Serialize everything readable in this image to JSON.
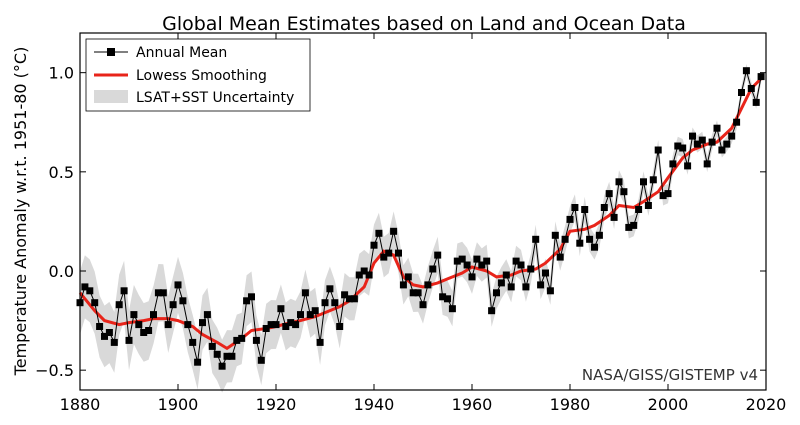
{
  "chart_data": {
    "type": "line",
    "title": "Global Mean Estimates based on Land and Ocean Data",
    "xlabel": "",
    "ylabel": "Temperature Anomaly w.r.t. 1951-80 (°C)",
    "xlim": [
      1880,
      2020
    ],
    "ylim": [
      -0.6,
      1.2
    ],
    "xticks": [
      1880,
      1900,
      1920,
      1940,
      1960,
      1980,
      2000,
      2020
    ],
    "yticks": [
      -0.5,
      0.0,
      0.5,
      1.0
    ],
    "ytick_labels": [
      "−0.5",
      "0.0",
      "0.5",
      "1.0"
    ],
    "grid": false,
    "legend_position": "top-left",
    "credit": "NASA/GISS/GISTEMP v4",
    "colors": {
      "annual": "#000000",
      "lowess": "#e8241a",
      "uncertainty": "#d9d9d9"
    },
    "series": [
      {
        "name": "Annual Mean",
        "x": [
          1880,
          1881,
          1882,
          1883,
          1884,
          1885,
          1886,
          1887,
          1888,
          1889,
          1890,
          1891,
          1892,
          1893,
          1894,
          1895,
          1896,
          1897,
          1898,
          1899,
          1900,
          1901,
          1902,
          1903,
          1904,
          1905,
          1906,
          1907,
          1908,
          1909,
          1910,
          1911,
          1912,
          1913,
          1914,
          1915,
          1916,
          1917,
          1918,
          1919,
          1920,
          1921,
          1922,
          1923,
          1924,
          1925,
          1926,
          1927,
          1928,
          1929,
          1930,
          1931,
          1932,
          1933,
          1934,
          1935,
          1936,
          1937,
          1938,
          1939,
          1940,
          1941,
          1942,
          1943,
          1944,
          1945,
          1946,
          1947,
          1948,
          1949,
          1950,
          1951,
          1952,
          1953,
          1954,
          1955,
          1956,
          1957,
          1958,
          1959,
          1960,
          1961,
          1962,
          1963,
          1964,
          1965,
          1966,
          1967,
          1968,
          1969,
          1970,
          1971,
          1972,
          1973,
          1974,
          1975,
          1976,
          1977,
          1978,
          1979,
          1980,
          1981,
          1982,
          1983,
          1984,
          1985,
          1986,
          1987,
          1988,
          1989,
          1990,
          1991,
          1992,
          1993,
          1994,
          1995,
          1996,
          1997,
          1998,
          1999,
          2000,
          2001,
          2002,
          2003,
          2004,
          2005,
          2006,
          2007,
          2008,
          2009,
          2010,
          2011,
          2012,
          2013,
          2014,
          2015,
          2016,
          2017,
          2018,
          2019
        ],
        "values": [
          -0.16,
          -0.08,
          -0.1,
          -0.16,
          -0.28,
          -0.33,
          -0.31,
          -0.36,
          -0.17,
          -0.1,
          -0.35,
          -0.22,
          -0.27,
          -0.31,
          -0.3,
          -0.22,
          -0.11,
          -0.11,
          -0.27,
          -0.17,
          -0.07,
          -0.15,
          -0.27,
          -0.36,
          -0.46,
          -0.26,
          -0.22,
          -0.38,
          -0.42,
          -0.48,
          -0.43,
          -0.43,
          -0.35,
          -0.34,
          -0.15,
          -0.13,
          -0.35,
          -0.45,
          -0.29,
          -0.27,
          -0.27,
          -0.19,
          -0.28,
          -0.26,
          -0.27,
          -0.22,
          -0.11,
          -0.22,
          -0.2,
          -0.36,
          -0.16,
          -0.09,
          -0.16,
          -0.28,
          -0.12,
          -0.14,
          -0.14,
          -0.02,
          -0.0,
          -0.02,
          0.13,
          0.19,
          0.07,
          0.09,
          0.2,
          0.09,
          -0.07,
          -0.03,
          -0.11,
          -0.11,
          -0.17,
          -0.07,
          0.01,
          0.08,
          -0.13,
          -0.14,
          -0.19,
          0.05,
          0.06,
          0.03,
          -0.03,
          0.06,
          0.03,
          0.05,
          -0.2,
          -0.11,
          -0.06,
          -0.02,
          -0.08,
          0.05,
          0.03,
          -0.08,
          0.01,
          0.16,
          -0.07,
          -0.01,
          -0.1,
          0.18,
          0.07,
          0.16,
          0.26,
          0.32,
          0.14,
          0.31,
          0.16,
          0.12,
          0.18,
          0.32,
          0.39,
          0.27,
          0.45,
          0.4,
          0.22,
          0.23,
          0.31,
          0.45,
          0.33,
          0.46,
          0.61,
          0.38,
          0.39,
          0.54,
          0.63,
          0.62,
          0.53,
          0.68,
          0.64,
          0.66,
          0.54,
          0.65,
          0.72,
          0.61,
          0.64,
          0.68,
          0.75,
          0.9,
          1.01,
          0.92,
          0.85,
          0.98
        ]
      },
      {
        "name": "Lowess Smoothing",
        "x": [
          1880,
          1883,
          1885,
          1888,
          1890,
          1893,
          1895,
          1898,
          1900,
          1903,
          1905,
          1908,
          1910,
          1913,
          1915,
          1918,
          1920,
          1923,
          1925,
          1928,
          1930,
          1933,
          1935,
          1938,
          1940,
          1942,
          1944,
          1946,
          1948,
          1950,
          1953,
          1955,
          1958,
          1960,
          1963,
          1965,
          1968,
          1970,
          1973,
          1975,
          1978,
          1980,
          1983,
          1985,
          1988,
          1990,
          1993,
          1995,
          1998,
          2000,
          2003,
          2005,
          2008,
          2010,
          2013,
          2015,
          2017,
          2019
        ],
        "values": [
          -0.11,
          -0.2,
          -0.25,
          -0.27,
          -0.26,
          -0.25,
          -0.24,
          -0.24,
          -0.25,
          -0.28,
          -0.32,
          -0.36,
          -0.39,
          -0.34,
          -0.3,
          -0.29,
          -0.28,
          -0.26,
          -0.25,
          -0.23,
          -0.21,
          -0.18,
          -0.15,
          -0.08,
          0.04,
          0.1,
          0.08,
          -0.03,
          -0.07,
          -0.08,
          -0.06,
          -0.04,
          -0.01,
          0.02,
          0.0,
          -0.03,
          -0.02,
          0.0,
          0.01,
          0.04,
          0.11,
          0.2,
          0.21,
          0.23,
          0.28,
          0.33,
          0.32,
          0.35,
          0.4,
          0.47,
          0.57,
          0.61,
          0.64,
          0.65,
          0.72,
          0.82,
          0.92,
          0.97
        ]
      },
      {
        "name": "LSAT+SST Uncertainty",
        "band_half_width": [
          0.16,
          0.15,
          0.14,
          0.13,
          0.12,
          0.11,
          0.1,
          0.09,
          0.08,
          0.07,
          0.06,
          0.05,
          0.04,
          0.03
        ]
      }
    ]
  }
}
